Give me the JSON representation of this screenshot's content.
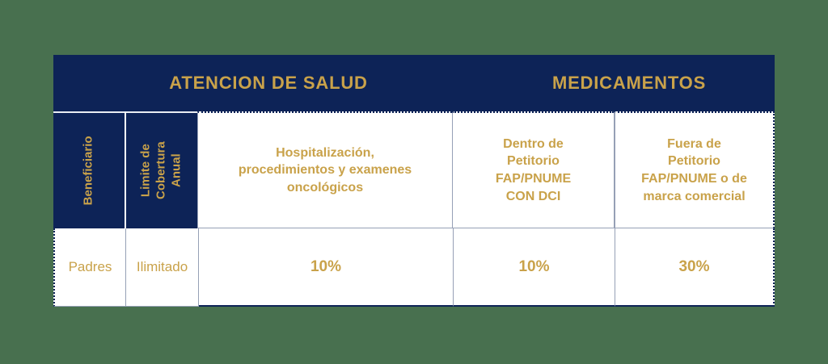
{
  "palette": {
    "background_green": "#48704F",
    "navy": "#0D2357",
    "gold": "#C9A24A",
    "border_light": "#96A0B6",
    "cell_white": "#FFFFFF"
  },
  "table": {
    "group_headers": [
      {
        "label": "ATENCION DE SALUD"
      },
      {
        "label": "MEDICAMENTOS"
      }
    ],
    "row_headers": [
      {
        "label": "Beneficiario"
      },
      {
        "label": "Limite de\nCobertura\nAnual"
      }
    ],
    "column_headers": [
      {
        "label": "Hospitalización,\nprocedimientos y examenes\noncológicos"
      },
      {
        "label": "Dentro de\nPetitorio\nFAP/PNUME\nCON DCI"
      },
      {
        "label": "Fuera de\nPetitorio\nFAP/PNUME o de\nmarca comercial"
      }
    ],
    "rows": [
      {
        "beneficiario": "Padres",
        "limite_cobertura": "Ilimitado",
        "values": [
          "10%",
          "10%",
          "30%"
        ]
      }
    ]
  }
}
